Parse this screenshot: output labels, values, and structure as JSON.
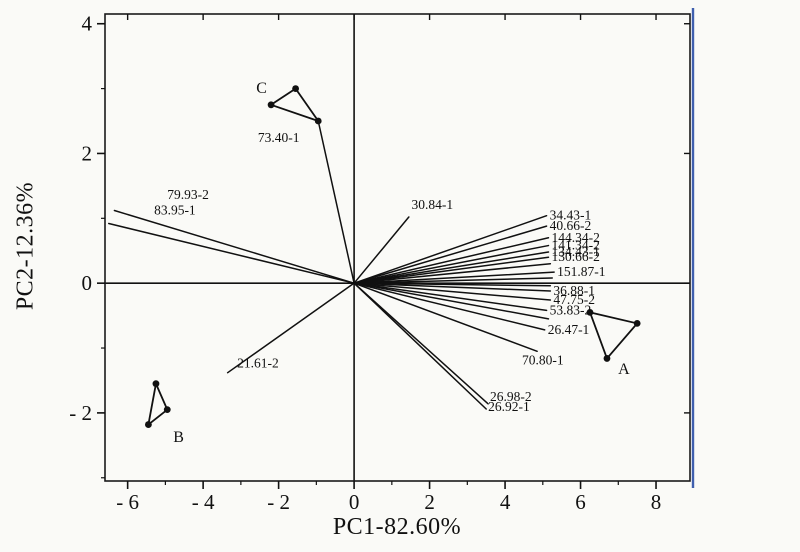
{
  "figure": {
    "xlabel": "PC1-82.60%",
    "ylabel": "PC2-12.36%",
    "colors": {
      "ink": "#111111",
      "frame": "#1a1a1a",
      "accent_right_border": "#3f5fae",
      "background": "#fafaf7"
    }
  },
  "chart_data": {
    "type": "scatter",
    "subtype": "pca-biplot-loadings",
    "title": "",
    "xlabel": "PC1-82.60%",
    "ylabel": "PC2-12.36%",
    "xlim": [
      -6.6,
      8.9
    ],
    "ylim": [
      -3.05,
      4.15
    ],
    "grid": false,
    "legend": false,
    "xticks": [
      {
        "v": -6,
        "label": "- 6"
      },
      {
        "v": -4,
        "label": "- 4"
      },
      {
        "v": -2,
        "label": "- 2"
      },
      {
        "v": 0,
        "label": "0"
      },
      {
        "v": 2,
        "label": "2"
      },
      {
        "v": 4,
        "label": "4"
      },
      {
        "v": 6,
        "label": "6"
      },
      {
        "v": 8,
        "label": "8"
      }
    ],
    "yticks": [
      {
        "v": 4,
        "label": "4"
      },
      {
        "v": 2,
        "label": "2"
      },
      {
        "v": 0,
        "label": "0"
      },
      {
        "v": -2,
        "label": "- 2"
      }
    ],
    "xminor": [
      -5,
      -3,
      -1,
      1,
      3,
      5,
      7
    ],
    "yminor": [
      3,
      1,
      -1,
      -3
    ],
    "loading_vectors": [
      {
        "label": "73.40-1",
        "x": -0.95,
        "y": 2.5,
        "label_x": -2.55,
        "label_y": 2.18
      },
      {
        "label": "79.93-2",
        "x": -6.35,
        "y": 1.12,
        "label_x": -4.95,
        "label_y": 1.3
      },
      {
        "label": "83.95-1",
        "x": -6.5,
        "y": 0.92,
        "label_x": -5.3,
        "label_y": 1.06
      },
      {
        "label": "30.84-1",
        "x": 1.45,
        "y": 1.02,
        "label_x": 1.52,
        "label_y": 1.14
      },
      {
        "label": "21.61-2",
        "x": -3.35,
        "y": -1.38,
        "label_x": -3.1,
        "label_y": -1.3
      },
      {
        "label": "34.43-1",
        "x": 5.1,
        "y": 1.04
      },
      {
        "label": "40.66-2",
        "x": 5.1,
        "y": 0.88
      },
      {
        "label": "144.34-2",
        "x": 5.15,
        "y": 0.7
      },
      {
        "label": "141.34-2",
        "x": 5.15,
        "y": 0.58
      },
      {
        "label": "134.43-1",
        "x": 5.15,
        "y": 0.48
      },
      {
        "label": "130.66-2",
        "x": 5.15,
        "y": 0.4
      },
      {
        "label": "",
        "x": 5.2,
        "y": 0.3
      },
      {
        "label": "151.87-1",
        "x": 5.3,
        "y": 0.17
      },
      {
        "label": "",
        "x": 5.25,
        "y": 0.08
      },
      {
        "label": "",
        "x": 5.2,
        "y": -0.04
      },
      {
        "label": "36.88-1",
        "x": 5.2,
        "y": -0.12
      },
      {
        "label": "47.75-2",
        "x": 5.2,
        "y": -0.26
      },
      {
        "label": "53.83-2",
        "x": 5.1,
        "y": -0.42
      },
      {
        "label": "",
        "x": 5.15,
        "y": -0.55
      },
      {
        "label": "26.47-1",
        "x": 5.05,
        "y": -0.72
      },
      {
        "label": "70.80-1",
        "x": 4.85,
        "y": -1.05,
        "label_x": 4.45,
        "label_y": -1.25
      },
      {
        "label": "26.98-2",
        "x": 3.55,
        "y": -1.86,
        "label_x": 3.6,
        "label_y": -1.82
      },
      {
        "label": "26.92-1",
        "x": 3.5,
        "y": -1.94,
        "label_x": 3.55,
        "label_y": -1.97
      }
    ],
    "clusters": [
      {
        "name": "A",
        "label_x": 7.15,
        "label_y": -1.4,
        "points": [
          [
            6.25,
            -0.45
          ],
          [
            7.5,
            -0.62
          ],
          [
            6.7,
            -1.16
          ]
        ]
      },
      {
        "name": "B",
        "label_x": -4.65,
        "label_y": -2.45,
        "points": [
          [
            -5.25,
            -1.55
          ],
          [
            -4.95,
            -1.95
          ],
          [
            -5.45,
            -2.18
          ]
        ]
      },
      {
        "name": "C",
        "label_x": -2.45,
        "label_y": 2.93,
        "points": [
          [
            -1.55,
            3.0
          ],
          [
            -2.2,
            2.75
          ],
          [
            -0.95,
            2.5
          ]
        ]
      }
    ]
  }
}
